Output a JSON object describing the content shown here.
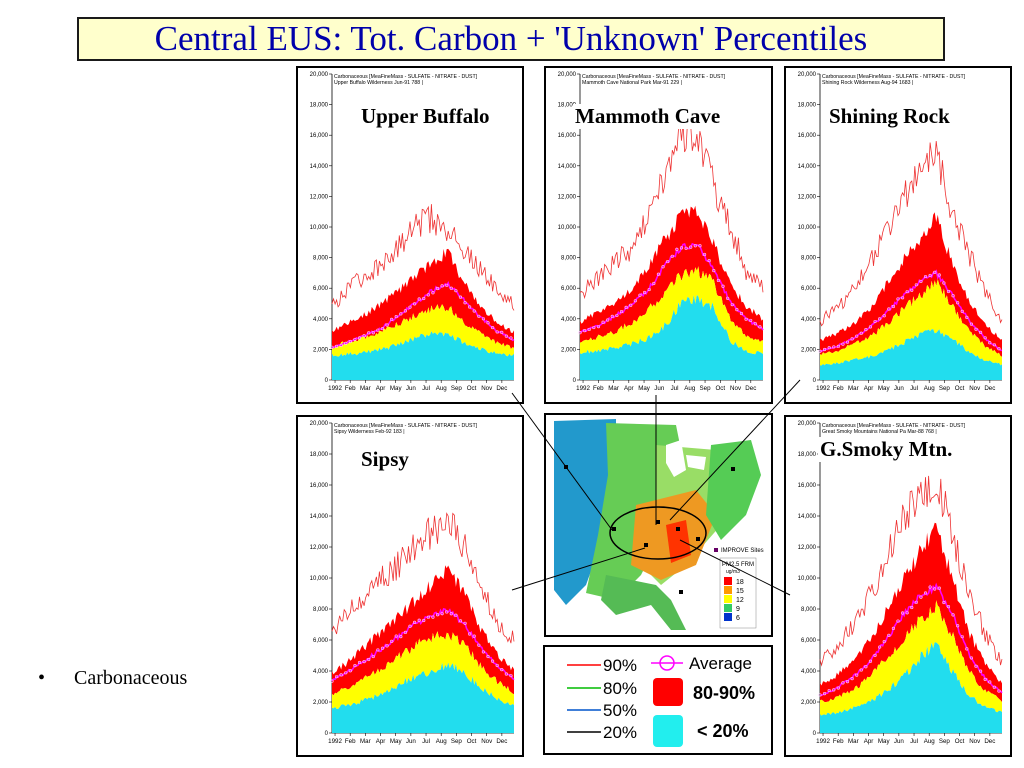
{
  "slide": {
    "title": "Central EUS: Tot. Carbon + 'Unknown' Percentiles",
    "bullet": "Carbonaceous"
  },
  "colors": {
    "p90": "#ee3333",
    "p80_90": "#ff0000",
    "p50_80": "#ffff00",
    "p20_50": "#ffff00",
    "lt20": "#22ddee",
    "average": "#ff00ff",
    "title_text": "#0000aa",
    "title_bg": "#ffffcc"
  },
  "chart_data": [
    {
      "type": "area",
      "site": "Upper Buffalo",
      "header_line1": "Carbonaceous [MeaFineMass - SULFATE - NITRATE - DUST]",
      "header_line2": "Upper Buffalo Wilderness Jun-91 788 |",
      "xlabels": [
        "1992",
        "Feb",
        "Mar",
        "Apr",
        "May",
        "Jun",
        "Jul",
        "Aug",
        "Sep",
        "Oct",
        "Nov",
        "Dec"
      ],
      "yticks": [
        "0",
        "2,000",
        "4,000",
        "6,000",
        "8,000",
        "10,000",
        "12,000",
        "14,000",
        "16,000",
        "18,000",
        "20,000"
      ],
      "ylim": [
        0,
        20000
      ],
      "months": [
        1,
        2,
        3,
        4,
        5,
        6,
        7,
        8,
        9,
        10,
        11,
        12
      ],
      "p20": [
        1600,
        1700,
        1800,
        2000,
        2300,
        2700,
        3100,
        3000,
        2400,
        2000,
        1700,
        1600
      ],
      "p50": [
        2200,
        2500,
        2800,
        3200,
        3700,
        4200,
        4600,
        4800,
        3800,
        3000,
        2400,
        2100
      ],
      "p80": [
        3200,
        3700,
        4300,
        5000,
        5800,
        6700,
        7600,
        8400,
        6300,
        4800,
        3700,
        3100
      ],
      "p90": [
        4800,
        6000,
        6800,
        7500,
        8800,
        10000,
        10600,
        9800,
        8500,
        7200,
        5800,
        5000
      ],
      "avg": [
        2100,
        2500,
        2900,
        3400,
        4200,
        5000,
        5800,
        6300,
        5200,
        4100,
        3200,
        2600
      ]
    },
    {
      "type": "area",
      "site": "Mammoth Cave",
      "header_line1": "Carbonaceous [MeaFineMass - SULFATE - NITRATE - DUST]",
      "header_line2": "Mammoth Cave National Park Mar-91 229 |",
      "xlabels": [
        "1992",
        "Feb",
        "Mar",
        "Apr",
        "May",
        "Jun",
        "Jul",
        "Aug",
        "Sep",
        "Oct",
        "Nov",
        "Dec"
      ],
      "yticks": [
        "0",
        "2,000",
        "4,000",
        "6,000",
        "8,000",
        "10,000",
        "12,000",
        "14,000",
        "16,000",
        "18,000",
        "20,000"
      ],
      "ylim": [
        0,
        20000
      ],
      "months": [
        1,
        2,
        3,
        4,
        5,
        6,
        7,
        8,
        9,
        10,
        11,
        12
      ],
      "p20": [
        1800,
        1900,
        2100,
        2300,
        2700,
        3400,
        4900,
        5300,
        4800,
        2600,
        1900,
        1700
      ],
      "p50": [
        2500,
        2800,
        3100,
        3700,
        4500,
        5600,
        6800,
        7100,
        6400,
        4000,
        2900,
        2500
      ],
      "p80": [
        3800,
        4300,
        5000,
        5800,
        7100,
        9000,
        10600,
        11200,
        9000,
        6300,
        4800,
        4000
      ],
      "p90": [
        5600,
        6600,
        7700,
        8500,
        10500,
        12800,
        16000,
        16300,
        13000,
        10100,
        7100,
        6000
      ],
      "avg": [
        3100,
        3500,
        4100,
        4800,
        5800,
        7300,
        8600,
        8900,
        7300,
        5200,
        4000,
        3300
      ]
    },
    {
      "type": "area",
      "site": "Shining Rock",
      "header_line1": "Carbonaceous [MeaFineMass - SULFATE - NITRATE - DUST]",
      "header_line2": "Shining Rock Wilderness Aug-94 1683 |",
      "xlabels": [
        "1992",
        "Feb",
        "Mar",
        "Apr",
        "May",
        "Jun",
        "Jul",
        "Aug",
        "Sep",
        "Oct",
        "Nov",
        "Dec"
      ],
      "yticks": [
        "0",
        "2,000",
        "4,000",
        "6,000",
        "8,000",
        "10,000",
        "12,000",
        "14,000",
        "16,000",
        "18,000",
        "20,000"
      ],
      "ylim": [
        0,
        20000
      ],
      "months": [
        1,
        2,
        3,
        4,
        5,
        6,
        7,
        8,
        9,
        10,
        11,
        12
      ],
      "p20": [
        1000,
        1100,
        1300,
        1500,
        1900,
        2400,
        2900,
        3300,
        2700,
        1800,
        1300,
        1000
      ],
      "p50": [
        1700,
        1900,
        2300,
        2800,
        3600,
        4600,
        5500,
        6500,
        4800,
        3200,
        2200,
        1600
      ],
      "p80": [
        2600,
        3000,
        3700,
        4600,
        6200,
        7800,
        9100,
        10700,
        7600,
        5200,
        3600,
        2600
      ],
      "p90": [
        3800,
        4700,
        5800,
        7600,
        9500,
        11800,
        13500,
        15000,
        10800,
        8300,
        5700,
        3800
      ],
      "avg": [
        1900,
        2200,
        2700,
        3400,
        4400,
        5500,
        6400,
        7000,
        5600,
        3900,
        2700,
        1900
      ]
    },
    {
      "type": "area",
      "site": "Sipsy",
      "header_line1": "Carbonaceous [MeaFineMass - SULFATE - NITRATE - DUST]",
      "header_line2": "Sipsy Wilderness Feb-92 183 |",
      "xlabels": [
        "1992",
        "Feb",
        "Mar",
        "Apr",
        "May",
        "Jun",
        "Jul",
        "Aug",
        "Sep",
        "Oct",
        "Nov",
        "Dec"
      ],
      "yticks": [
        "0",
        "2,000",
        "4,000",
        "6,000",
        "8,000",
        "10,000",
        "12,000",
        "14,000",
        "16,000",
        "18,000",
        "20,000"
      ],
      "ylim": [
        0,
        20000
      ],
      "months": [
        1,
        2,
        3,
        4,
        5,
        6,
        7,
        8,
        9,
        10,
        11,
        12
      ],
      "p20": [
        1600,
        1800,
        2100,
        2500,
        3100,
        3600,
        4000,
        4400,
        3900,
        2900,
        2200,
        1700
      ],
      "p50": [
        2500,
        2900,
        3500,
        4200,
        4900,
        5600,
        6200,
        6400,
        5700,
        4300,
        3300,
        2600
      ],
      "p80": [
        3900,
        4600,
        5600,
        6500,
        7500,
        8500,
        9600,
        10600,
        8900,
        6700,
        5000,
        4000
      ],
      "p90": [
        6300,
        7700,
        8800,
        10100,
        10900,
        12000,
        13000,
        13900,
        12000,
        9200,
        7200,
        6000
      ],
      "avg": [
        3400,
        4000,
        4700,
        5400,
        6200,
        7000,
        7600,
        7900,
        7000,
        5500,
        4300,
        3500
      ]
    },
    {
      "type": "area",
      "site": "G.Smoky Mtn.",
      "header_line1": "Carbonaceous [MeaFineMass - SULFATE - NITRATE - DUST]",
      "header_line2": "Great Smoky Mountains National Pa Mar-88 768 |",
      "xlabels": [
        "1992",
        "Feb",
        "Mar",
        "Apr",
        "May",
        "Jun",
        "Jul",
        "Aug",
        "Sep",
        "Oct",
        "Nov",
        "Dec"
      ],
      "yticks": [
        "0",
        "2,000",
        "4,000",
        "6,000",
        "8,000",
        "10,000",
        "12,000",
        "14,000",
        "16,000",
        "18,000",
        "20,000"
      ],
      "ylim": [
        0,
        20000
      ],
      "months": [
        1,
        2,
        3,
        4,
        5,
        6,
        7,
        8,
        9,
        10,
        11,
        12
      ],
      "p20": [
        1200,
        1300,
        1600,
        2000,
        2700,
        3600,
        4800,
        5700,
        4000,
        2400,
        1700,
        1300
      ],
      "p50": [
        2000,
        2300,
        2800,
        3600,
        4800,
        6000,
        7300,
        8200,
        6300,
        4000,
        2700,
        2100
      ],
      "p80": [
        3100,
        3700,
        4600,
        6000,
        7800,
        9800,
        11600,
        13300,
        10000,
        6500,
        4400,
        3200
      ],
      "p90": [
        4600,
        5600,
        6900,
        8800,
        11300,
        13700,
        15600,
        16500,
        12900,
        9300,
        6300,
        4600
      ],
      "avg": [
        2400,
        2900,
        3600,
        4600,
        6000,
        7600,
        8800,
        9500,
        7700,
        5100,
        3500,
        2600
      ]
    }
  ],
  "sites": {
    "upper_buffalo": "Upper Buffalo",
    "mammoth_cave": "Mammoth Cave",
    "shining_rock": "Shining Rock",
    "sipsy": "Sipsy",
    "smoky": "G.Smoky Mtn."
  },
  "map": {
    "legend_title": "IMPROVE Sites",
    "legend_sub": "PM2.5 FRM",
    "legend_units": "ug/m3",
    "legend_values": [
      "18",
      "15",
      "12",
      "9",
      "6"
    ],
    "legend_colors": [
      "#ff0000",
      "#ff9900",
      "#ffff00",
      "#33cc66",
      "#0033cc"
    ]
  },
  "legend": {
    "p90": "90%",
    "p80": "80%",
    "p50": "50%",
    "p20": "20%",
    "average": "Average",
    "band_80_90": "80-90%",
    "band_lt20": "< 20%",
    "line_colors": [
      "#ff0000",
      "#00bb00",
      "#0055cc",
      "#000000"
    ]
  }
}
